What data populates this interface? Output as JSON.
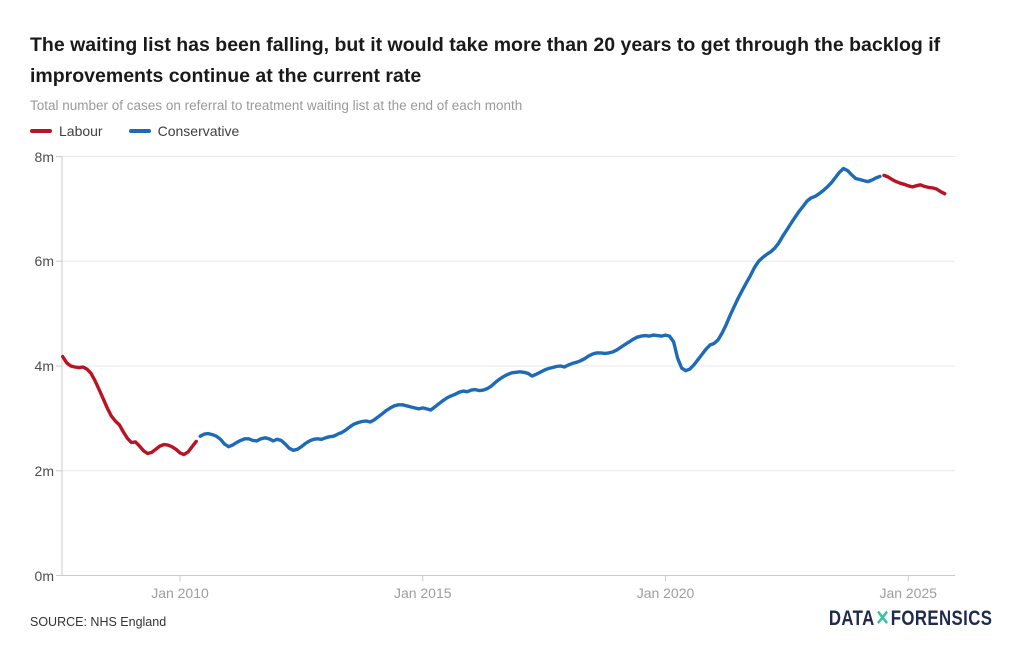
{
  "header": {
    "title_lines": [
      "The waiting list has been falling, but it would take more than 20 years to get through the backlog if",
      "improvements continue at the current rate"
    ],
    "subtitle": "Total number of cases on referral to treatment waiting list at the end of each month"
  },
  "legend": {
    "items": [
      {
        "label": "Labour",
        "color": "#b91423"
      },
      {
        "label": "Conservative",
        "color": "#1d6bb8"
      }
    ]
  },
  "footer": {
    "source_label": "SOURCE: NHS England",
    "logo": {
      "part1": "DATA",
      "xmark": "✕",
      "part2": "FORENSICS",
      "text_color": "#1e2b4f",
      "xmark_color": "#36c39f"
    }
  },
  "chart_data": {
    "type": "line",
    "title": "The waiting list has been falling, but it would take more than 20 years to get through the backlog if improvements continue at the current rate",
    "subtitle": "Total number of cases on referral to treatment waiting list at the end of each month",
    "unit": "millions of cases",
    "interval": "monthly",
    "ylim": [
      0,
      8
    ],
    "grid": "horizontal",
    "legend_position": "top-left",
    "y_ticks": [
      {
        "value": 0,
        "label": "0m"
      },
      {
        "value": 2,
        "label": "2m"
      },
      {
        "value": 4,
        "label": "4m"
      },
      {
        "value": 6,
        "label": "6m"
      },
      {
        "value": 8,
        "label": "8m"
      }
    ],
    "x_ticks": [
      {
        "year": 2010,
        "label": "Jan 2010"
      },
      {
        "year": 2015,
        "label": "Jan 2015"
      },
      {
        "year": 2020,
        "label": "Jan 2020"
      },
      {
        "year": 2025,
        "label": "Jan 2025"
      }
    ],
    "series": [
      {
        "name": "Labour",
        "color": "#b91423",
        "start": "2007-08",
        "values": [
          4.18,
          4.06,
          4.0,
          3.98,
          3.97,
          3.98,
          3.94,
          3.86,
          3.72,
          3.55,
          3.38,
          3.2,
          3.05,
          2.95,
          2.88,
          2.74,
          2.62,
          2.54,
          2.55,
          2.47,
          2.38,
          2.33,
          2.35,
          2.41,
          2.47,
          2.5,
          2.49,
          2.46,
          2.41,
          2.34,
          2.31,
          2.36,
          2.46,
          2.56
        ]
      },
      {
        "name": "Conservative",
        "color": "#1d6bb8",
        "start": "2010-06",
        "values": [
          2.66,
          2.7,
          2.71,
          2.69,
          2.66,
          2.6,
          2.51,
          2.46,
          2.49,
          2.54,
          2.58,
          2.61,
          2.61,
          2.58,
          2.57,
          2.61,
          2.63,
          2.61,
          2.57,
          2.6,
          2.58,
          2.51,
          2.43,
          2.39,
          2.41,
          2.46,
          2.52,
          2.57,
          2.6,
          2.61,
          2.6,
          2.63,
          2.65,
          2.66,
          2.7,
          2.73,
          2.78,
          2.84,
          2.89,
          2.92,
          2.94,
          2.95,
          2.93,
          2.97,
          3.03,
          3.09,
          3.15,
          3.2,
          3.24,
          3.26,
          3.26,
          3.24,
          3.22,
          3.2,
          3.18,
          3.2,
          3.18,
          3.16,
          3.22,
          3.28,
          3.34,
          3.39,
          3.43,
          3.46,
          3.5,
          3.52,
          3.51,
          3.54,
          3.55,
          3.53,
          3.54,
          3.57,
          3.62,
          3.69,
          3.75,
          3.8,
          3.84,
          3.87,
          3.88,
          3.89,
          3.88,
          3.86,
          3.81,
          3.84,
          3.88,
          3.92,
          3.95,
          3.97,
          3.99,
          4.0,
          3.98,
          4.02,
          4.05,
          4.07,
          4.1,
          4.14,
          4.19,
          4.23,
          4.25,
          4.25,
          4.24,
          4.25,
          4.27,
          4.31,
          4.36,
          4.41,
          4.46,
          4.51,
          4.55,
          4.57,
          4.58,
          4.57,
          4.59,
          4.58,
          4.57,
          4.59,
          4.57,
          4.46,
          4.15,
          3.96,
          3.91,
          3.94,
          4.02,
          4.12,
          4.22,
          4.32,
          4.4,
          4.43,
          4.5,
          4.63,
          4.79,
          4.97,
          5.14,
          5.3,
          5.45,
          5.59,
          5.73,
          5.88,
          6.0,
          6.07,
          6.13,
          6.18,
          6.25,
          6.35,
          6.48,
          6.6,
          6.72,
          6.84,
          6.95,
          7.05,
          7.15,
          7.21,
          7.24,
          7.29,
          7.35,
          7.42,
          7.5,
          7.6,
          7.7,
          7.77,
          7.73,
          7.65,
          7.58,
          7.56,
          7.54,
          7.52,
          7.55,
          7.59,
          7.62
        ]
      },
      {
        "name": "Labour",
        "color": "#b91423",
        "start": "2024-07",
        "values": [
          7.64,
          7.61,
          7.56,
          7.52,
          7.49,
          7.47,
          7.44,
          7.42,
          7.44,
          7.46,
          7.43,
          7.41,
          7.4,
          7.38,
          7.33,
          7.29
        ]
      }
    ]
  }
}
